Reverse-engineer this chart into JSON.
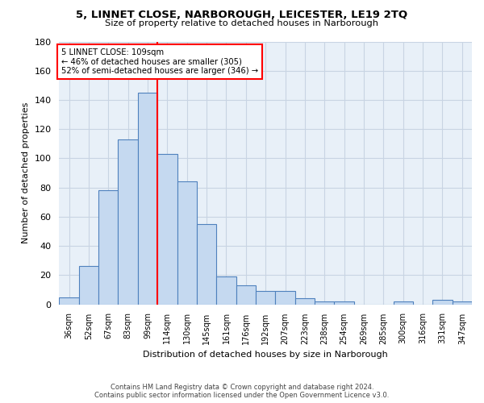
{
  "title_line1": "5, LINNET CLOSE, NARBOROUGH, LEICESTER, LE19 2TQ",
  "title_line2": "Size of property relative to detached houses in Narborough",
  "xlabel": "Distribution of detached houses by size in Narborough",
  "ylabel": "Number of detached properties",
  "categories": [
    "36sqm",
    "52sqm",
    "67sqm",
    "83sqm",
    "99sqm",
    "114sqm",
    "130sqm",
    "145sqm",
    "161sqm",
    "176sqm",
    "192sqm",
    "207sqm",
    "223sqm",
    "238sqm",
    "254sqm",
    "269sqm",
    "285sqm",
    "300sqm",
    "316sqm",
    "331sqm",
    "347sqm"
  ],
  "values": [
    5,
    26,
    78,
    113,
    145,
    103,
    84,
    55,
    19,
    13,
    9,
    9,
    4,
    2,
    2,
    0,
    0,
    2,
    0,
    3,
    2
  ],
  "bar_color": "#c5d9f0",
  "bar_edge_color": "#4f81bd",
  "property_label": "5 LINNET CLOSE: 109sqm",
  "annotation_line1": "← 46% of detached houses are smaller (305)",
  "annotation_line2": "52% of semi-detached houses are larger (346) →",
  "vline_bin_index": 5,
  "ylim": [
    0,
    180
  ],
  "yticks": [
    0,
    20,
    40,
    60,
    80,
    100,
    120,
    140,
    160,
    180
  ],
  "footer_line1": "Contains HM Land Registry data © Crown copyright and database right 2024.",
  "footer_line2": "Contains public sector information licensed under the Open Government Licence v3.0.",
  "background_color": "#ffffff",
  "grid_color": "#c8d4e3"
}
